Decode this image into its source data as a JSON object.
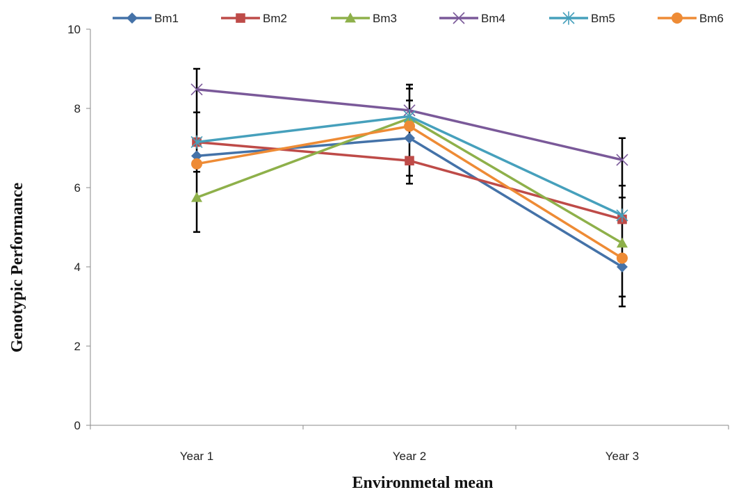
{
  "chart_data": {
    "type": "line",
    "title": "",
    "xlabel": "Environmetal mean",
    "ylabel": "Genotypic Performance",
    "categories": [
      "Year 1",
      "Year 2",
      "Year 3"
    ],
    "ylim": [
      0,
      10
    ],
    "yticks": [
      0,
      2,
      4,
      6,
      8,
      10
    ],
    "grid": false,
    "legend_position": "top",
    "series": [
      {
        "name": "Bm1",
        "color": "#4472A8",
        "marker": "diamond",
        "values": [
          6.8,
          7.25,
          4.0
        ]
      },
      {
        "name": "Bm2",
        "color": "#BE4B48",
        "marker": "square",
        "values": [
          7.15,
          6.68,
          5.2
        ]
      },
      {
        "name": "Bm3",
        "color": "#8EB04A",
        "marker": "triangle",
        "values": [
          5.75,
          7.75,
          4.6
        ]
      },
      {
        "name": "Bm4",
        "color": "#7A5999",
        "marker": "x",
        "values": [
          8.48,
          7.95,
          6.7
        ]
      },
      {
        "name": "Bm5",
        "color": "#46A0BC",
        "marker": "asterisk",
        "values": [
          7.15,
          7.8,
          5.3
        ]
      },
      {
        "name": "Bm6",
        "color": "#EE8B35",
        "marker": "circle",
        "values": [
          6.6,
          7.55,
          4.22
        ]
      }
    ],
    "error_bars": [
      {
        "category": "Year 1",
        "low": 4.88,
        "high": 9.0,
        "extra_ticks": [
          7.9,
          6.4
        ]
      },
      {
        "category": "Year 2",
        "low": 6.1,
        "high": 8.6,
        "extra_ticks": [
          8.5,
          8.2,
          6.3
        ]
      },
      {
        "category": "Year 3",
        "low": 3.0,
        "high": 7.25,
        "extra_ticks": [
          6.05,
          5.75,
          3.25
        ]
      }
    ]
  }
}
